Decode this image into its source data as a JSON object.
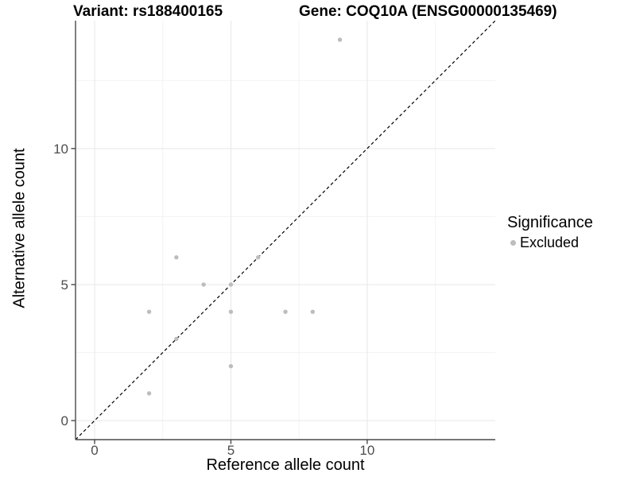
{
  "titles": {
    "variant": "Variant: rs188400165",
    "gene": "Gene: COQ10A (ENSG00000135469)"
  },
  "legend": {
    "title": "Significance",
    "items": [
      {
        "label": "Excluded",
        "color": "#bdbdbd"
      }
    ]
  },
  "chart_data": {
    "type": "scatter",
    "title": "Variant: rs188400165 — Gene: COQ10A (ENSG00000135469)",
    "xlabel": "Reference allele count",
    "ylabel": "Alternative allele count",
    "xlim": [
      -0.7,
      14.7
    ],
    "ylim": [
      -0.7,
      14.7
    ],
    "x_ticks": [
      0,
      5,
      10
    ],
    "y_ticks": [
      0,
      5,
      10
    ],
    "x_minor_ticks": [
      2.5,
      7.5,
      12.5
    ],
    "y_minor_ticks": [
      2.5,
      7.5,
      12.5
    ],
    "grid": true,
    "legend_position": "right",
    "series": [
      {
        "name": "Excluded",
        "color": "#bdbdbd",
        "points": [
          [
            2,
            1
          ],
          [
            2,
            4
          ],
          [
            3,
            3
          ],
          [
            3,
            6
          ],
          [
            4,
            5
          ],
          [
            5,
            2
          ],
          [
            5,
            4
          ],
          [
            5,
            5
          ],
          [
            6,
            6
          ],
          [
            7,
            4
          ],
          [
            8,
            4
          ],
          [
            9,
            14
          ]
        ]
      }
    ],
    "reference_line": {
      "type": "identity",
      "style": "dashed",
      "color": "#000000"
    }
  },
  "colors": {
    "grid_major": "#e7e7e7",
    "grid_minor": "#f3f3f3",
    "axis_line": "#4a4a4a",
    "tick_mark": "#4a4a4a",
    "tick_label": "#4d4d4d",
    "point": "#bdbdbd",
    "background": "#ffffff"
  }
}
